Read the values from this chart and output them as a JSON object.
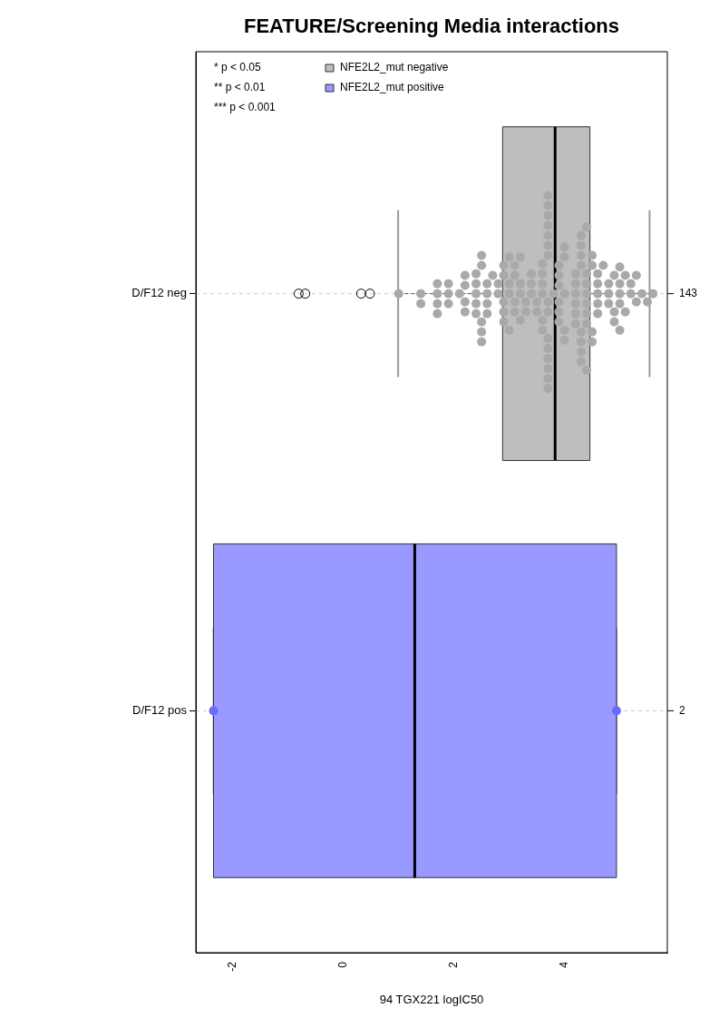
{
  "chart_data": {
    "type": "box",
    "title": "FEATURE/Screening Media interactions",
    "xlabel": "94 TGX221 logIC50",
    "orientation": "horizontal",
    "categories": [
      "D/F12 neg",
      "D/F12 pos"
    ],
    "xlim": [
      -2.67,
      5.86
    ],
    "xticks": [
      -2,
      0,
      2,
      4
    ],
    "grid": "y",
    "legend": "top left",
    "annotations": [
      "* p < 0.05",
      "** p < 0.01",
      "*** p < 0.001",
      "143",
      "2"
    ],
    "series": [
      {
        "name": "NFE2L2_mut negative",
        "color": "#bebebe",
        "boxes": [
          {
            "low": 0.99,
            "q1": 2.88,
            "median": 3.83,
            "q3": 4.46,
            "high": 5.54,
            "outliers": [
              -0.81,
              -0.69,
              0.32,
              0.48
            ]
          },
          null
        ]
      },
      {
        "name": "NFE2L2_mut positive",
        "color": "#9999ff",
        "boxes": [
          null,
          {
            "low": -2.35,
            "q1": -2.35,
            "median": 1.29,
            "q3": 4.94,
            "high": 4.94
          }
        ]
      },
      {
        "type": "scatter",
        "color": "#a9a9a9",
        "x": [
          "D/F12 neg",
          "D/F12 neg",
          "D/F12 neg",
          "D/F12 neg",
          "D/F12 neg",
          "D/F12 neg",
          "D/F12 neg",
          "D/F12 neg",
          "D/F12 neg",
          "D/F12 neg",
          "D/F12 neg",
          "D/F12 neg",
          "D/F12 neg",
          "D/F12 neg",
          "D/F12 neg",
          "D/F12 neg",
          "D/F12 neg",
          "D/F12 neg",
          "D/F12 neg",
          "D/F12 neg",
          "D/F12 neg",
          "D/F12 neg",
          "D/F12 neg",
          "D/F12 neg",
          "D/F12 neg",
          "D/F12 neg",
          "D/F12 neg",
          "D/F12 neg",
          "D/F12 neg",
          "D/F12 neg",
          "D/F12 neg",
          "D/F12 neg",
          "D/F12 neg",
          "D/F12 neg",
          "D/F12 neg",
          "D/F12 neg",
          "D/F12 neg",
          "D/F12 neg",
          "D/F12 neg",
          "D/F12 neg",
          "D/F12 neg",
          "D/F12 neg",
          "D/F12 neg",
          "D/F12 neg",
          "D/F12 neg",
          "D/F12 neg",
          "D/F12 neg",
          "D/F12 neg",
          "D/F12 neg",
          "D/F12 neg",
          "D/F12 neg",
          "D/F12 neg",
          "D/F12 neg",
          "D/F12 neg",
          "D/F12 neg",
          "D/F12 neg",
          "D/F12 neg",
          "D/F12 neg",
          "D/F12 neg",
          "D/F12 neg",
          "D/F12 neg",
          "D/F12 neg",
          "D/F12 neg",
          "D/F12 neg",
          "D/F12 neg",
          "D/F12 neg",
          "D/F12 neg",
          "D/F12 neg",
          "D/F12 neg",
          "D/F12 neg",
          "D/F12 neg",
          "D/F12 neg",
          "D/F12 neg",
          "D/F12 neg",
          "D/F12 neg",
          "D/F12 neg",
          "D/F12 neg",
          "D/F12 neg",
          "D/F12 neg",
          "D/F12 neg",
          "D/F12 neg",
          "D/F12 neg",
          "D/F12 neg",
          "D/F12 neg",
          "D/F12 neg",
          "D/F12 neg",
          "D/F12 neg",
          "D/F12 neg",
          "D/F12 neg",
          "D/F12 neg",
          "D/F12 neg",
          "D/F12 neg",
          "D/F12 neg",
          "D/F12 neg",
          "D/F12 neg",
          "D/F12 neg",
          "D/F12 neg",
          "D/F12 neg",
          "D/F12 neg",
          "D/F12 neg",
          "D/F12 neg",
          "D/F12 neg",
          "D/F12 neg",
          "D/F12 neg",
          "D/F12 neg",
          "D/F12 neg",
          "D/F12 neg",
          "D/F12 neg",
          "D/F12 neg",
          "D/F12 neg",
          "D/F12 neg",
          "D/F12 neg",
          "D/F12 neg",
          "D/F12 neg",
          "D/F12 neg",
          "D/F12 neg",
          "D/F12 neg",
          "D/F12 neg",
          "D/F12 neg",
          "D/F12 neg",
          "D/F12 neg",
          "D/F12 neg",
          "D/F12 neg",
          "D/F12 neg",
          "D/F12 neg",
          "D/F12 neg",
          "D/F12 neg",
          "D/F12 neg",
          "D/F12 neg",
          "D/F12 neg",
          "D/F12 neg",
          "D/F12 neg",
          "D/F12 neg",
          "D/F12 neg",
          "D/F12 neg",
          "D/F12 neg",
          "D/F12 neg",
          "D/F12 neg",
          "D/F12 neg",
          "D/F12 neg",
          "D/F12 neg"
        ],
        "values": [
          1.0,
          1.4,
          1.4,
          1.7,
          1.7,
          1.7,
          1.7,
          1.9,
          1.9,
          1.9,
          2.1,
          2.2,
          2.2,
          2.2,
          2.2,
          2.4,
          2.4,
          2.4,
          2.4,
          2.4,
          2.5,
          2.5,
          2.5,
          2.5,
          2.5,
          2.6,
          2.6,
          2.6,
          2.6,
          2.7,
          2.8,
          2.8,
          2.9,
          2.9,
          2.9,
          2.9,
          2.9,
          3.0,
          3.0,
          3.0,
          3.0,
          3.1,
          3.1,
          3.1,
          3.1,
          3.2,
          3.2,
          3.2,
          3.2,
          3.3,
          3.3,
          3.4,
          3.4,
          3.4,
          3.5,
          3.5,
          3.6,
          3.6,
          3.6,
          3.6,
          3.6,
          3.6,
          3.7,
          3.7,
          3.7,
          3.7,
          3.7,
          3.7,
          3.7,
          3.7,
          3.7,
          3.7,
          3.7,
          3.7,
          3.7,
          3.7,
          3.7,
          3.8,
          3.9,
          3.9,
          3.9,
          3.9,
          3.9,
          3.9,
          4.0,
          4.0,
          4.0,
          4.0,
          4.0,
          4.2,
          4.2,
          4.2,
          4.2,
          4.2,
          4.2,
          4.3,
          4.3,
          4.3,
          4.3,
          4.3,
          4.3,
          4.3,
          4.3,
          4.4,
          4.4,
          4.4,
          4.4,
          4.4,
          4.4,
          4.4,
          4.4,
          4.5,
          4.5,
          4.5,
          4.5,
          4.6,
          4.6,
          4.6,
          4.6,
          4.6,
          4.7,
          4.8,
          4.8,
          4.8,
          4.9,
          4.9,
          4.9,
          5.0,
          5.0,
          5.0,
          5.0,
          5.0,
          5.1,
          5.1,
          5.2,
          5.2,
          5.3,
          5.3,
          5.4,
          5.5,
          5.6
        ]
      },
      {
        "type": "scatter",
        "color": "#6b6bff",
        "x": [
          "D/F12 pos",
          "D/F12 pos"
        ],
        "values": [
          -2.35,
          4.94
        ]
      }
    ]
  }
}
